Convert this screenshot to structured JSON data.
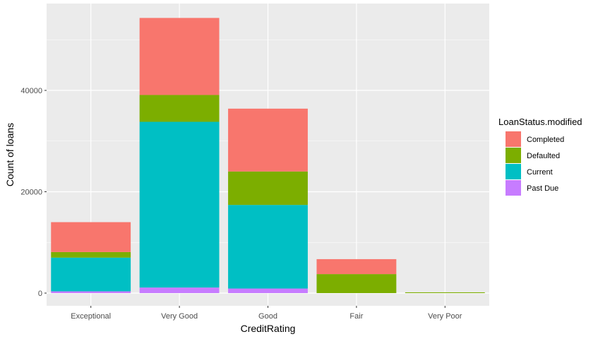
{
  "chart_data": {
    "type": "bar",
    "stacked": true,
    "xlabel": "CreditRating",
    "ylabel": "Count of loans",
    "ylim": [
      0,
      58000
    ],
    "yticks": [
      0,
      20000,
      40000
    ],
    "ytick_labels": [
      "0",
      "20000",
      "40000"
    ],
    "grid": true,
    "legend_title": "LoanStatus.modified",
    "legend_position": "right",
    "categories": [
      "Exceptional",
      "Very Good",
      "Good",
      "Fair",
      "Very Poor"
    ],
    "series": [
      {
        "name": "Past Due",
        "color": "#C77CFF",
        "values": [
          350,
          1100,
          900,
          0,
          0
        ]
      },
      {
        "name": "Current",
        "color": "#00BFC4",
        "values": [
          6650,
          32700,
          16500,
          0,
          0
        ]
      },
      {
        "name": "Defaulted",
        "color": "#7CAE00",
        "values": [
          1100,
          5300,
          6600,
          3750,
          150
        ]
      },
      {
        "name": "Completed",
        "color": "#F8766D",
        "values": [
          5900,
          15200,
          12400,
          2950,
          0
        ]
      }
    ],
    "legend_order": [
      "Completed",
      "Defaulted",
      "Current",
      "Past Due"
    ]
  }
}
